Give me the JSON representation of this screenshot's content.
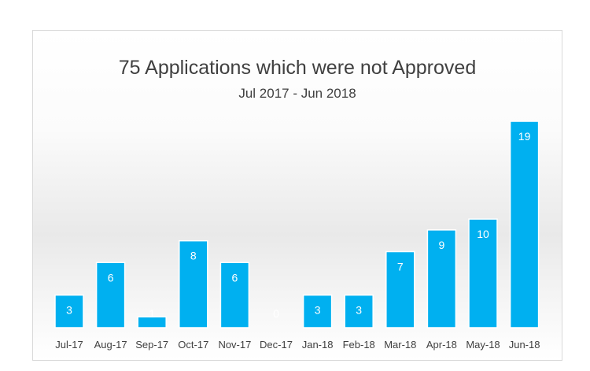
{
  "chart_data": {
    "type": "bar",
    "title": "75 Applications which were not Approved",
    "subtitle": "Jul 2017 - Jun 2018",
    "categories": [
      "Jul-17",
      "Aug-17",
      "Sep-17",
      "Oct-17",
      "Nov-17",
      "Dec-17",
      "Jan-18",
      "Feb-18",
      "Mar-18",
      "Apr-18",
      "May-18",
      "Jun-18"
    ],
    "values": [
      3,
      6,
      1,
      8,
      6,
      0,
      3,
      3,
      7,
      9,
      10,
      19
    ],
    "data_labels": true,
    "grid": false,
    "ylim": [
      0,
      19
    ],
    "colors": {
      "bar": "#00b0f0",
      "label": "#ffffff",
      "text": "#404040"
    }
  }
}
